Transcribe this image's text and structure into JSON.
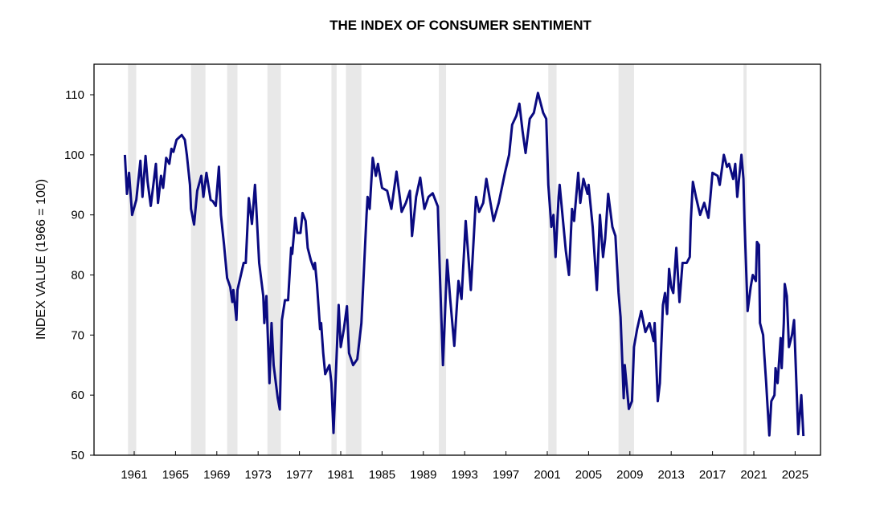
{
  "chart_data": {
    "type": "line",
    "title": "THE INDEX OF CONSUMER SENTIMENT",
    "xlabel": "",
    "ylabel": "INDEX VALUE (1966 = 100)",
    "xlim": [
      1957.1,
      2027.5
    ],
    "ylim": [
      50,
      112
    ],
    "yticks": [
      50,
      60,
      70,
      80,
      90,
      100,
      110
    ],
    "xticks": [
      1961,
      1965,
      1969,
      1973,
      1977,
      1981,
      1985,
      1989,
      1993,
      1997,
      2001,
      2005,
      2009,
      2013,
      2017,
      2021,
      2025
    ],
    "grid": false,
    "colors": {
      "line": "#0a0a80",
      "recession": "#e8e8e8",
      "axis": "#000000"
    },
    "recessions": [
      [
        1960.4,
        1961.2
      ],
      [
        1966.5,
        1967.9
      ],
      [
        1970.0,
        1971.0
      ],
      [
        1973.9,
        1975.2
      ],
      [
        1980.1,
        1980.6
      ],
      [
        1981.5,
        1983.0
      ],
      [
        1990.5,
        1991.2
      ],
      [
        2001.1,
        2001.9
      ],
      [
        2007.9,
        2009.4
      ],
      [
        2020.0,
        2020.3
      ]
    ],
    "series": [
      {
        "name": "Index of Consumer Sentiment",
        "points": [
          [
            1960.1,
            100
          ],
          [
            1960.3,
            93.5
          ],
          [
            1960.5,
            97
          ],
          [
            1960.8,
            90
          ],
          [
            1961.2,
            92.5
          ],
          [
            1961.6,
            99
          ],
          [
            1961.8,
            93
          ],
          [
            1962.1,
            99.8
          ],
          [
            1962.3,
            95.5
          ],
          [
            1962.6,
            91.5
          ],
          [
            1963.1,
            98.5
          ],
          [
            1963.3,
            92
          ],
          [
            1963.6,
            96.5
          ],
          [
            1963.8,
            94.5
          ],
          [
            1964.1,
            99.5
          ],
          [
            1964.4,
            98.5
          ],
          [
            1964.6,
            101
          ],
          [
            1964.8,
            100.5
          ],
          [
            1965.1,
            102.5
          ],
          [
            1965.6,
            103.3
          ],
          [
            1965.9,
            102.5
          ],
          [
            1966.1,
            100
          ],
          [
            1966.4,
            95
          ],
          [
            1966.5,
            91
          ],
          [
            1966.8,
            88.4
          ],
          [
            1967.1,
            94
          ],
          [
            1967.5,
            96.5
          ],
          [
            1967.7,
            93
          ],
          [
            1968.0,
            97
          ],
          [
            1968.4,
            92.5
          ],
          [
            1968.6,
            92.3
          ],
          [
            1968.9,
            91.5
          ],
          [
            1969.2,
            98
          ],
          [
            1969.4,
            90
          ],
          [
            1969.7,
            85
          ],
          [
            1970.0,
            79.5
          ],
          [
            1970.3,
            78
          ],
          [
            1970.5,
            75.5
          ],
          [
            1970.6,
            77.5
          ],
          [
            1970.9,
            72.5
          ],
          [
            1971.0,
            77.5
          ],
          [
            1971.6,
            82
          ],
          [
            1971.8,
            82
          ],
          [
            1972.1,
            92.8
          ],
          [
            1972.4,
            88.5
          ],
          [
            1972.7,
            95
          ],
          [
            1972.8,
            92
          ],
          [
            1973.1,
            82
          ],
          [
            1973.5,
            76.5
          ],
          [
            1973.6,
            72
          ],
          [
            1973.8,
            76.5
          ],
          [
            1974.1,
            62
          ],
          [
            1974.3,
            72
          ],
          [
            1974.5,
            65
          ],
          [
            1974.9,
            59.5
          ],
          [
            1975.1,
            57.6
          ],
          [
            1975.3,
            72.5
          ],
          [
            1975.6,
            75.8
          ],
          [
            1975.9,
            75.8
          ],
          [
            1976.2,
            84.5
          ],
          [
            1976.3,
            83.5
          ],
          [
            1976.6,
            89.5
          ],
          [
            1976.8,
            87
          ],
          [
            1977.1,
            87
          ],
          [
            1977.3,
            90.3
          ],
          [
            1977.6,
            89
          ],
          [
            1977.8,
            84.5
          ],
          [
            1978.1,
            82.5
          ],
          [
            1978.4,
            81
          ],
          [
            1978.5,
            82
          ],
          [
            1978.7,
            78.5
          ],
          [
            1979.0,
            71
          ],
          [
            1979.1,
            72
          ],
          [
            1979.3,
            67
          ],
          [
            1979.5,
            63.5
          ],
          [
            1979.9,
            65
          ],
          [
            1980.1,
            62
          ],
          [
            1980.3,
            53.7
          ],
          [
            1980.8,
            75
          ],
          [
            1981.0,
            68
          ],
          [
            1981.3,
            71
          ],
          [
            1981.6,
            74.8
          ],
          [
            1981.8,
            67
          ],
          [
            1982.2,
            65
          ],
          [
            1982.6,
            66
          ],
          [
            1983.0,
            72
          ],
          [
            1983.5,
            90
          ],
          [
            1983.6,
            93
          ],
          [
            1983.8,
            91
          ],
          [
            1984.1,
            99.5
          ],
          [
            1984.4,
            96.5
          ],
          [
            1984.6,
            98.5
          ],
          [
            1985.0,
            94.5
          ],
          [
            1985.5,
            94
          ],
          [
            1985.9,
            91
          ],
          [
            1986.4,
            97.2
          ],
          [
            1986.9,
            90.5
          ],
          [
            1987.3,
            92
          ],
          [
            1987.7,
            94
          ],
          [
            1987.9,
            86.5
          ],
          [
            1988.3,
            93
          ],
          [
            1988.7,
            96.2
          ],
          [
            1989.1,
            91
          ],
          [
            1989.5,
            93
          ],
          [
            1989.9,
            93.6
          ],
          [
            1990.4,
            91.4
          ],
          [
            1990.6,
            80
          ],
          [
            1990.9,
            65
          ],
          [
            1991.3,
            82.5
          ],
          [
            1991.6,
            76
          ],
          [
            1992.0,
            68.2
          ],
          [
            1992.4,
            79
          ],
          [
            1992.7,
            76
          ],
          [
            1993.1,
            89
          ],
          [
            1993.6,
            77.5
          ],
          [
            1994.1,
            93
          ],
          [
            1994.4,
            90.5
          ],
          [
            1994.8,
            92
          ],
          [
            1995.1,
            96
          ],
          [
            1995.8,
            89
          ],
          [
            1996.3,
            92
          ],
          [
            1996.9,
            97
          ],
          [
            1997.3,
            100
          ],
          [
            1997.6,
            105
          ],
          [
            1998.0,
            106.5
          ],
          [
            1998.3,
            108.5
          ],
          [
            1998.6,
            104
          ],
          [
            1998.9,
            100.3
          ],
          [
            1999.3,
            106
          ],
          [
            1999.7,
            107
          ],
          [
            2000.1,
            110.3
          ],
          [
            2000.6,
            107
          ],
          [
            2000.9,
            106
          ],
          [
            2001.1,
            95
          ],
          [
            2001.4,
            88
          ],
          [
            2001.6,
            90
          ],
          [
            2001.8,
            83
          ],
          [
            2002.1,
            93
          ],
          [
            2002.2,
            95
          ],
          [
            2002.8,
            84
          ],
          [
            2003.1,
            80
          ],
          [
            2003.4,
            91
          ],
          [
            2003.6,
            89
          ],
          [
            2004.0,
            97
          ],
          [
            2004.2,
            92
          ],
          [
            2004.5,
            96
          ],
          [
            2004.9,
            93.5
          ],
          [
            2005.0,
            95
          ],
          [
            2005.4,
            88
          ],
          [
            2005.8,
            77.5
          ],
          [
            2006.1,
            90
          ],
          [
            2006.4,
            83
          ],
          [
            2006.6,
            86
          ],
          [
            2006.9,
            93.5
          ],
          [
            2007.3,
            88
          ],
          [
            2007.6,
            86.5
          ],
          [
            2007.9,
            77
          ],
          [
            2008.1,
            73
          ],
          [
            2008.4,
            59.5
          ],
          [
            2008.5,
            65
          ],
          [
            2008.9,
            57.7
          ],
          [
            2009.2,
            59
          ],
          [
            2009.4,
            68
          ],
          [
            2009.7,
            71
          ],
          [
            2010.1,
            74
          ],
          [
            2010.5,
            70.5
          ],
          [
            2010.9,
            72
          ],
          [
            2011.3,
            69
          ],
          [
            2011.4,
            72
          ],
          [
            2011.7,
            59
          ],
          [
            2011.9,
            62
          ],
          [
            2012.2,
            75
          ],
          [
            2012.4,
            77
          ],
          [
            2012.6,
            73.5
          ],
          [
            2012.8,
            81
          ],
          [
            2013.0,
            78
          ],
          [
            2013.2,
            77
          ],
          [
            2013.5,
            84.5
          ],
          [
            2013.8,
            75.5
          ],
          [
            2014.1,
            82
          ],
          [
            2014.5,
            82
          ],
          [
            2014.8,
            83
          ],
          [
            2014.9,
            89
          ],
          [
            2015.1,
            95.5
          ],
          [
            2015.4,
            93
          ],
          [
            2015.8,
            90
          ],
          [
            2016.2,
            92
          ],
          [
            2016.6,
            89.5
          ],
          [
            2016.8,
            93
          ],
          [
            2017.0,
            97
          ],
          [
            2017.5,
            96.5
          ],
          [
            2017.7,
            95
          ],
          [
            2018.1,
            100
          ],
          [
            2018.4,
            98
          ],
          [
            2018.6,
            98.5
          ],
          [
            2019.0,
            96
          ],
          [
            2019.2,
            98.5
          ],
          [
            2019.4,
            93
          ],
          [
            2019.8,
            100
          ],
          [
            2020.0,
            96
          ],
          [
            2020.1,
            89
          ],
          [
            2020.4,
            74
          ],
          [
            2020.7,
            78
          ],
          [
            2020.9,
            80
          ],
          [
            2021.2,
            79
          ],
          [
            2021.3,
            85.5
          ],
          [
            2021.5,
            85
          ],
          [
            2021.6,
            72
          ],
          [
            2021.9,
            70
          ],
          [
            2022.0,
            67
          ],
          [
            2022.2,
            62
          ],
          [
            2022.3,
            59
          ],
          [
            2022.5,
            53.3
          ],
          [
            2022.7,
            59
          ],
          [
            2023.0,
            60
          ],
          [
            2023.1,
            64.5
          ],
          [
            2023.3,
            62
          ],
          [
            2023.6,
            69.5
          ],
          [
            2023.7,
            64.5
          ],
          [
            2023.9,
            72
          ],
          [
            2024.0,
            78.5
          ],
          [
            2024.2,
            76.5
          ],
          [
            2024.4,
            68
          ],
          [
            2024.7,
            70
          ],
          [
            2024.9,
            72.5
          ],
          [
            2025.3,
            53.5
          ],
          [
            2025.6,
            60
          ],
          [
            2025.8,
            53.2
          ]
        ]
      }
    ]
  }
}
